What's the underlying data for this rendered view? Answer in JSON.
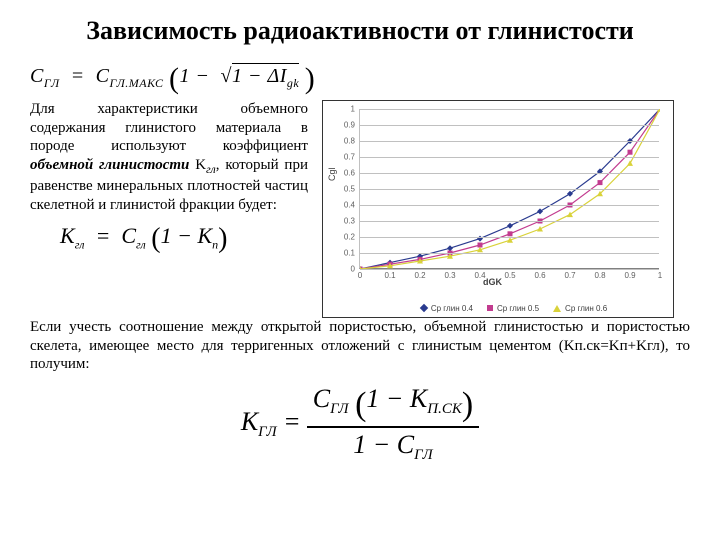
{
  "title": "Зависимость радиоактивности от глинистости",
  "eq1": {
    "lhs": "C",
    "lhs_sub": "ГЛ",
    "rhs1": "C",
    "rhs1_sub": "ГЛ.МАКС",
    "inner": "1 −",
    "root_arg": "1 − ΔI",
    "root_sub": "gk"
  },
  "para1_a": "Для характеристики объемного содержания глинистого материала в породе используют коэффициент ",
  "para1_em": "объемной глинистости",
  "para1_b": " K",
  "para1_b_sub": "гл",
  "para1_c": ", который при равенстве минеральных плотностей частиц скелетной и глинистой фракции будет:",
  "eq2": {
    "lhs": "K",
    "lhs_sub": "гл",
    "r1": "C",
    "r1_sub": "гл",
    "inner": "1 − K",
    "inner_sub": "п"
  },
  "para2": "Если учесть соотношение между открытой пористостью, объемной глинистостью и пористостью скелета, имеющее место для терригенных отложений с глинистым цементом (Kп.ск=Kп+Kгл), то получим:",
  "eq3": {
    "lhs": "K",
    "lhs_sub": "ГЛ",
    "num_a": "C",
    "num_a_sub": "ГЛ",
    "num_inner": "1 − K",
    "num_inner_sub": "П.СК",
    "den": "1 − C",
    "den_sub": "ГЛ"
  },
  "chart": {
    "type": "line-scatter",
    "xlim": [
      0,
      1
    ],
    "ylim": [
      0,
      1
    ],
    "xtick_step": 0.1,
    "ytick_step": 0.1,
    "xlabel": "dGK",
    "ylabel": "Cgl",
    "background_color": "#ffffff",
    "grid_color": "#c0c0c0",
    "axis_color": "#808080",
    "tick_fontsize": 8,
    "label_fontsize": 9,
    "series": [
      {
        "name": "Ср глин 0.4",
        "color": "#2a3b8f",
        "marker": "diamond",
        "x": [
          0,
          0.1,
          0.2,
          0.3,
          0.4,
          0.5,
          0.6,
          0.7,
          0.8,
          0.9,
          1.0
        ],
        "y": [
          0.0,
          0.04,
          0.08,
          0.13,
          0.19,
          0.27,
          0.36,
          0.47,
          0.61,
          0.8,
          1.0
        ]
      },
      {
        "name": "Ср глин 0.5",
        "color": "#c23b8f",
        "marker": "square",
        "x": [
          0,
          0.1,
          0.2,
          0.3,
          0.4,
          0.5,
          0.6,
          0.7,
          0.8,
          0.9,
          1.0
        ],
        "y": [
          0.0,
          0.03,
          0.06,
          0.1,
          0.15,
          0.22,
          0.3,
          0.4,
          0.54,
          0.73,
          1.0
        ]
      },
      {
        "name": "Ср глин 0.6",
        "color": "#d9d23a",
        "marker": "triangle",
        "x": [
          0,
          0.1,
          0.2,
          0.3,
          0.4,
          0.5,
          0.6,
          0.7,
          0.8,
          0.9,
          1.0
        ],
        "y": [
          0.0,
          0.02,
          0.05,
          0.08,
          0.12,
          0.18,
          0.25,
          0.34,
          0.47,
          0.66,
          1.0
        ]
      }
    ]
  }
}
